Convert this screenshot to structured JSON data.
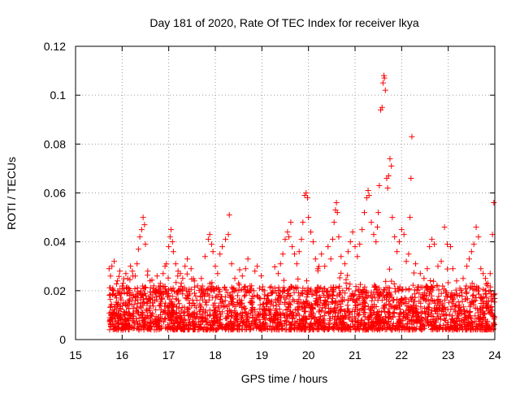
{
  "chart_data": {
    "type": "scatter",
    "title": "Day 181 of 2020, Rate Of TEC Index for receiver lkya",
    "xlabel": "GPS time / hours",
    "ylabel": "ROTI / TECUs",
    "xlim": [
      15,
      24
    ],
    "ylim": [
      0,
      0.12
    ],
    "x_ticks": [
      15,
      16,
      17,
      18,
      19,
      20,
      21,
      22,
      23,
      24
    ],
    "x_tick_labels": [
      "15",
      "16",
      "17",
      "18",
      "19",
      "20",
      "21",
      "22",
      "23",
      "24"
    ],
    "y_ticks": [
      0,
      0.02,
      0.04,
      0.06,
      0.08,
      0.1,
      0.12
    ],
    "y_tick_labels": [
      "0",
      "0.02",
      "0.04",
      "0.06",
      "0.08",
      "0.1",
      "0.12"
    ],
    "grid": true,
    "marker": "plus",
    "marker_color": "#ff0000",
    "series": [
      {
        "color": "#ff0000",
        "points": [
          [
            15.72,
            0.029
          ],
          [
            15.75,
            0.026
          ],
          [
            15.78,
            0.03
          ],
          [
            15.8,
            0.021
          ],
          [
            15.83,
            0.032
          ],
          [
            15.85,
            0.018
          ],
          [
            15.9,
            0.024
          ],
          [
            15.95,
            0.028
          ],
          [
            16.02,
            0.023
          ],
          [
            16.08,
            0.027
          ],
          [
            16.12,
            0.025
          ],
          [
            16.18,
            0.03
          ],
          [
            16.22,
            0.028
          ],
          [
            16.28,
            0.026
          ],
          [
            16.32,
            0.031
          ],
          [
            16.35,
            0.037
          ],
          [
            16.38,
            0.042
          ],
          [
            16.42,
            0.045
          ],
          [
            16.45,
            0.05
          ],
          [
            16.48,
            0.047
          ],
          [
            16.5,
            0.039
          ],
          [
            16.55,
            0.028
          ],
          [
            16.6,
            0.024
          ],
          [
            16.68,
            0.022
          ],
          [
            16.75,
            0.026
          ],
          [
            16.82,
            0.023
          ],
          [
            16.88,
            0.027
          ],
          [
            16.92,
            0.03
          ],
          [
            16.95,
            0.031
          ],
          [
            17.0,
            0.038
          ],
          [
            17.03,
            0.042
          ],
          [
            17.05,
            0.045
          ],
          [
            17.08,
            0.04
          ],
          [
            17.1,
            0.036
          ],
          [
            17.15,
            0.031
          ],
          [
            17.2,
            0.028
          ],
          [
            17.25,
            0.027
          ],
          [
            17.3,
            0.025
          ],
          [
            17.35,
            0.03
          ],
          [
            17.4,
            0.033
          ],
          [
            17.48,
            0.029
          ],
          [
            17.55,
            0.024
          ],
          [
            17.62,
            0.022
          ],
          [
            17.7,
            0.025
          ],
          [
            17.78,
            0.034
          ],
          [
            17.85,
            0.041
          ],
          [
            17.88,
            0.043
          ],
          [
            17.92,
            0.039
          ],
          [
            17.95,
            0.036
          ],
          [
            18.0,
            0.03
          ],
          [
            18.05,
            0.027
          ],
          [
            18.1,
            0.035
          ],
          [
            18.15,
            0.038
          ],
          [
            18.22,
            0.041
          ],
          [
            18.28,
            0.043
          ],
          [
            18.3,
            0.051
          ],
          [
            18.35,
            0.031
          ],
          [
            18.42,
            0.025
          ],
          [
            18.5,
            0.023
          ],
          [
            18.58,
            0.026
          ],
          [
            18.65,
            0.029
          ],
          [
            18.7,
            0.033
          ],
          [
            18.78,
            0.022
          ],
          [
            18.85,
            0.028
          ],
          [
            18.9,
            0.03
          ],
          [
            18.95,
            0.021
          ],
          [
            19.05,
            0.02
          ],
          [
            19.12,
            0.018
          ],
          [
            19.2,
            0.019
          ],
          [
            19.28,
            0.021
          ],
          [
            19.35,
            0.027
          ],
          [
            19.4,
            0.031
          ],
          [
            19.45,
            0.035
          ],
          [
            19.5,
            0.041
          ],
          [
            19.55,
            0.044
          ],
          [
            19.58,
            0.042
          ],
          [
            19.62,
            0.048
          ],
          [
            19.65,
            0.038
          ],
          [
            19.7,
            0.035
          ],
          [
            19.75,
            0.031
          ],
          [
            19.8,
            0.036
          ],
          [
            19.85,
            0.041
          ],
          [
            19.88,
            0.048
          ],
          [
            19.92,
            0.059
          ],
          [
            19.95,
            0.06
          ],
          [
            19.98,
            0.058
          ],
          [
            20.0,
            0.05
          ],
          [
            20.05,
            0.044
          ],
          [
            20.1,
            0.04
          ],
          [
            20.15,
            0.033
          ],
          [
            20.2,
            0.029
          ],
          [
            20.28,
            0.035
          ],
          [
            20.35,
            0.03
          ],
          [
            20.42,
            0.038
          ],
          [
            20.48,
            0.033
          ],
          [
            20.52,
            0.041
          ],
          [
            20.55,
            0.048
          ],
          [
            20.58,
            0.053
          ],
          [
            20.6,
            0.056
          ],
          [
            20.62,
            0.052
          ],
          [
            20.65,
            0.042
          ],
          [
            20.7,
            0.034
          ],
          [
            20.78,
            0.031
          ],
          [
            20.85,
            0.036
          ],
          [
            20.9,
            0.04
          ],
          [
            20.95,
            0.044
          ],
          [
            21.0,
            0.038
          ],
          [
            21.05,
            0.034
          ],
          [
            21.1,
            0.039
          ],
          [
            21.15,
            0.045
          ],
          [
            21.2,
            0.052
          ],
          [
            21.25,
            0.058
          ],
          [
            21.28,
            0.061
          ],
          [
            21.3,
            0.059
          ],
          [
            21.35,
            0.048
          ],
          [
            21.4,
            0.043
          ],
          [
            21.45,
            0.04
          ],
          [
            21.48,
            0.046
          ],
          [
            21.5,
            0.052
          ],
          [
            21.52,
            0.063
          ],
          [
            21.55,
            0.094
          ],
          [
            21.58,
            0.095
          ],
          [
            21.6,
            0.105
          ],
          [
            21.62,
            0.108
          ],
          [
            21.63,
            0.107
          ],
          [
            21.65,
            0.102
          ],
          [
            21.68,
            0.066
          ],
          [
            21.7,
            0.062
          ],
          [
            21.72,
            0.067
          ],
          [
            21.75,
            0.074
          ],
          [
            21.78,
            0.071
          ],
          [
            21.8,
            0.05
          ],
          [
            21.85,
            0.042
          ],
          [
            21.9,
            0.036
          ],
          [
            21.95,
            0.04
          ],
          [
            22.0,
            0.045
          ],
          [
            22.05,
            0.043
          ],
          [
            22.1,
            0.032
          ],
          [
            22.15,
            0.035
          ],
          [
            22.18,
            0.05
          ],
          [
            22.2,
            0.066
          ],
          [
            22.22,
            0.083
          ],
          [
            22.3,
            0.031
          ],
          [
            22.4,
            0.027
          ],
          [
            22.48,
            0.025
          ],
          [
            22.55,
            0.029
          ],
          [
            22.6,
            0.038
          ],
          [
            22.65,
            0.041
          ],
          [
            22.7,
            0.039
          ],
          [
            22.78,
            0.03
          ],
          [
            22.85,
            0.032
          ],
          [
            22.92,
            0.046
          ],
          [
            22.98,
            0.039
          ],
          [
            23.05,
            0.038
          ],
          [
            23.1,
            0.029
          ],
          [
            23.18,
            0.024
          ],
          [
            23.25,
            0.021
          ],
          [
            23.32,
            0.025
          ],
          [
            23.4,
            0.03
          ],
          [
            23.45,
            0.033
          ],
          [
            23.5,
            0.036
          ],
          [
            23.55,
            0.039
          ],
          [
            23.6,
            0.046
          ],
          [
            23.65,
            0.042
          ],
          [
            23.7,
            0.029
          ],
          [
            23.75,
            0.027
          ],
          [
            23.8,
            0.025
          ],
          [
            23.85,
            0.023
          ],
          [
            23.9,
            0.027
          ],
          [
            23.95,
            0.043
          ],
          [
            23.98,
            0.056
          ]
        ]
      }
    ]
  }
}
